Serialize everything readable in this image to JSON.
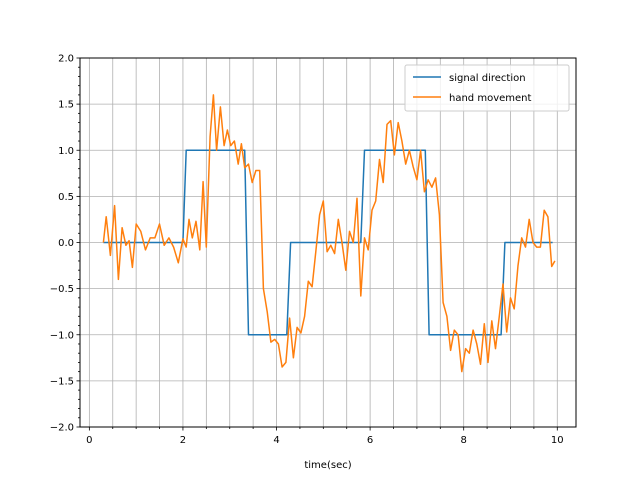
{
  "chart_data": {
    "type": "line",
    "xlabel": "time(sec)",
    "ylabel": "",
    "xlim": [
      -0.2,
      10.4
    ],
    "ylim": [
      -2.0,
      2.0
    ],
    "xticks": [
      0,
      2,
      4,
      6,
      8,
      10
    ],
    "yticks": [
      -2.0,
      -1.5,
      -1.0,
      -0.5,
      0.0,
      0.5,
      1.0,
      1.5,
      2.0
    ],
    "ytick_labels": [
      "−2.0",
      "−1.5",
      "−1.0",
      "−0.5",
      "0.0",
      "0.5",
      "1.0",
      "1.5",
      "2.0"
    ],
    "xtick_labels": [
      "0",
      "2",
      "4",
      "6",
      "8",
      "10"
    ],
    "grid": true,
    "legend_position": "top-right",
    "series": [
      {
        "name": "signal direction",
        "color": "#1f77b4",
        "x": [
          0.3,
          2.0,
          2.07,
          3.32,
          3.4,
          4.22,
          4.3,
          5.8,
          5.88,
          7.18,
          7.26,
          8.8,
          8.88,
          9.9
        ],
        "y": [
          0,
          0,
          1,
          1,
          -1,
          -1,
          0,
          0,
          1,
          1,
          -1,
          -1,
          0,
          0
        ]
      },
      {
        "name": "hand movement",
        "color": "#ff7f0e",
        "x": [
          0.3,
          0.36,
          0.45,
          0.54,
          0.62,
          0.7,
          0.78,
          0.85,
          0.92,
          1.0,
          1.1,
          1.2,
          1.3,
          1.4,
          1.5,
          1.6,
          1.7,
          1.8,
          1.9,
          2.0,
          2.07,
          2.13,
          2.2,
          2.28,
          2.36,
          2.43,
          2.5,
          2.58,
          2.65,
          2.72,
          2.8,
          2.88,
          2.95,
          3.02,
          3.1,
          3.18,
          3.25,
          3.32,
          3.4,
          3.48,
          3.56,
          3.64,
          3.72,
          3.8,
          3.88,
          3.96,
          4.04,
          4.12,
          4.2,
          4.28,
          4.36,
          4.44,
          4.52,
          4.6,
          4.68,
          4.76,
          4.84,
          4.92,
          5.0,
          5.08,
          5.16,
          5.24,
          5.32,
          5.4,
          5.48,
          5.56,
          5.64,
          5.72,
          5.8,
          5.88,
          5.96,
          6.04,
          6.12,
          6.2,
          6.28,
          6.36,
          6.44,
          6.52,
          6.6,
          6.68,
          6.76,
          6.84,
          6.92,
          7.0,
          7.08,
          7.16,
          7.24,
          7.32,
          7.4,
          7.48,
          7.56,
          7.64,
          7.72,
          7.8,
          7.88,
          7.96,
          8.04,
          8.12,
          8.2,
          8.28,
          8.36,
          8.44,
          8.52,
          8.6,
          8.68,
          8.76,
          8.84,
          8.92,
          9.0,
          9.08,
          9.16,
          9.24,
          9.32,
          9.4,
          9.48,
          9.56,
          9.64,
          9.72,
          9.8,
          9.88,
          9.95
        ],
        "y": [
          0.0,
          0.28,
          -0.14,
          0.4,
          -0.4,
          0.16,
          -0.03,
          0.02,
          -0.27,
          0.2,
          0.12,
          -0.08,
          0.05,
          0.05,
          0.2,
          -0.03,
          0.05,
          -0.05,
          -0.22,
          0.04,
          -0.05,
          0.25,
          0.05,
          0.23,
          -0.08,
          0.66,
          -0.05,
          1.15,
          1.6,
          1.0,
          1.47,
          1.05,
          1.22,
          1.05,
          1.1,
          0.85,
          1.07,
          0.81,
          0.85,
          0.65,
          0.78,
          0.78,
          -0.5,
          -0.75,
          -1.08,
          -1.05,
          -1.1,
          -1.35,
          -1.3,
          -0.82,
          -1.25,
          -0.92,
          -0.98,
          -0.8,
          -0.42,
          -0.48,
          -0.1,
          0.3,
          0.45,
          -0.1,
          -0.03,
          -0.12,
          0.25,
          0.0,
          -0.3,
          0.12,
          0.0,
          0.48,
          -0.58,
          0.05,
          -0.08,
          0.35,
          0.45,
          0.9,
          0.65,
          1.28,
          1.32,
          0.95,
          1.3,
          1.1,
          0.85,
          1.0,
          0.82,
          0.68,
          1.0,
          0.55,
          0.68,
          0.6,
          0.7,
          0.3,
          -0.65,
          -0.8,
          -1.17,
          -0.95,
          -1.0,
          -1.4,
          -1.15,
          -1.2,
          -0.95,
          -1.1,
          -1.32,
          -0.88,
          -1.3,
          -0.85,
          -1.15,
          -0.8,
          -0.45,
          -0.97,
          -0.6,
          -0.72,
          -0.25,
          0.05,
          -0.05,
          0.25,
          0.0,
          -0.05,
          -0.05,
          0.35,
          0.28,
          -0.26,
          -0.2
        ]
      }
    ]
  }
}
